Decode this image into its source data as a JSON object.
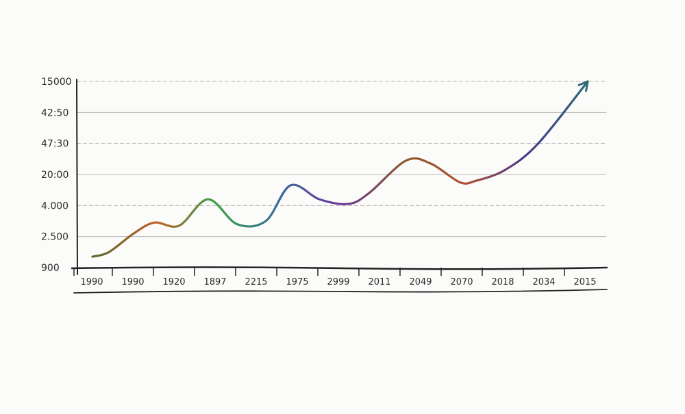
{
  "chart_data": {
    "type": "line",
    "title": "",
    "xlabel": "",
    "ylabel": "",
    "grid": true,
    "y_ticks": [
      "15000",
      "42:50",
      "47:30",
      "20:00",
      "4.000",
      "2.500",
      "900"
    ],
    "x_ticks": [
      "1990",
      "1990",
      "1920",
      "1897",
      "2215",
      "1975",
      "2999",
      "2011",
      "2049",
      "2070",
      "2018",
      "2034",
      "2015"
    ],
    "ylim": [
      0,
      6
    ],
    "series": [
      {
        "x": [
          0,
          0.4,
          1.0,
          1.5,
          2.1,
          2.8,
          3.5,
          4.2,
          4.8,
          5.5,
          6.2,
          6.7,
          7.6,
          8.2,
          8.9,
          9.3,
          10.0,
          10.8,
          12.0
        ],
        "y": [
          0.35,
          0.5,
          1.1,
          1.45,
          1.35,
          2.2,
          1.4,
          1.5,
          2.65,
          2.2,
          2.05,
          2.4,
          3.45,
          3.35,
          2.75,
          2.8,
          3.15,
          4.0,
          6.0
        ],
        "color_stops": [
          "#556b2f",
          "#c0602a",
          "#3aa04a",
          "#3a6a9a",
          "#6a3a9a",
          "#8a5a30",
          "#b05030",
          "#4a3a8a",
          "#2e6a78"
        ],
        "arrow": true
      }
    ],
    "colors": {
      "gridline": "#b5b5b5",
      "axis": "#222222",
      "arrow": "#2e6a78"
    }
  }
}
